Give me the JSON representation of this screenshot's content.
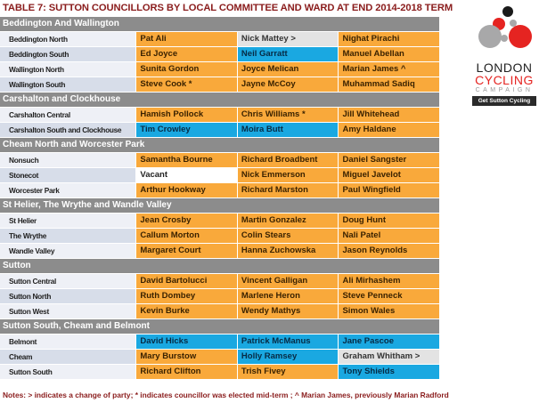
{
  "title": "TABLE 7: SUTTON COUNCILLORS BY LOCAL COMMITTEE AND WARD AT END 2014-2018 TERM",
  "colors": {
    "labour_orange": "#f9a93b",
    "con_blue": "#1aa8e1",
    "independent_grey": "#e3e3e3",
    "vacant_white": "#ffffff",
    "header_grey": "#8c8c8c"
  },
  "groups": [
    {
      "name": "Beddington And Wallington",
      "wards": [
        {
          "ward": "Beddington North",
          "c": [
            {
              "n": "Pat Ali",
              "p": "o"
            },
            {
              "n": "Nick Mattey >",
              "p": "g"
            },
            {
              "n": "Nighat Pirachi",
              "p": "o"
            }
          ]
        },
        {
          "ward": "Beddington South",
          "c": [
            {
              "n": "Ed Joyce",
              "p": "o"
            },
            {
              "n": "Neil Garratt",
              "p": "b"
            },
            {
              "n": "Manuel Abellan",
              "p": "o"
            }
          ]
        },
        {
          "ward": "Wallington North",
          "c": [
            {
              "n": "Sunita Gordon",
              "p": "o"
            },
            {
              "n": "Joyce Melican",
              "p": "o"
            },
            {
              "n": "Marian James ^",
              "p": "o"
            }
          ]
        },
        {
          "ward": "Wallington South",
          "c": [
            {
              "n": "Steve Cook *",
              "p": "o"
            },
            {
              "n": "Jayne McCoy",
              "p": "o"
            },
            {
              "n": "Muhammad Sadiq",
              "p": "o"
            }
          ]
        }
      ]
    },
    {
      "name": "Carshalton and Clockhouse",
      "wards": [
        {
          "ward": "Carshalton Central",
          "c": [
            {
              "n": "Hamish Pollock",
              "p": "o"
            },
            {
              "n": "Chris Williams *",
              "p": "o"
            },
            {
              "n": "Jill Whitehead",
              "p": "o"
            }
          ]
        },
        {
          "ward": "Carshalton South and Clockhouse",
          "c": [
            {
              "n": "Tim Crowley",
              "p": "b"
            },
            {
              "n": "Moira Butt",
              "p": "b"
            },
            {
              "n": "Amy Haldane",
              "p": "o"
            }
          ]
        }
      ]
    },
    {
      "name": "Cheam North and Worcester Park",
      "wards": [
        {
          "ward": "Nonsuch",
          "c": [
            {
              "n": "Samantha Bourne",
              "p": "o"
            },
            {
              "n": "Richard Broadbent",
              "p": "o"
            },
            {
              "n": "Daniel Sangster",
              "p": "o"
            }
          ]
        },
        {
          "ward": "Stonecot",
          "c": [
            {
              "n": "Vacant",
              "p": "w"
            },
            {
              "n": "Nick Emmerson",
              "p": "o"
            },
            {
              "n": "Miguel Javelot",
              "p": "o"
            }
          ]
        },
        {
          "ward": "Worcester Park",
          "c": [
            {
              "n": "Arthur Hookway",
              "p": "o"
            },
            {
              "n": "Richard Marston",
              "p": "o"
            },
            {
              "n": "Paul Wingfield",
              "p": "o"
            }
          ]
        }
      ]
    },
    {
      "name": "St Helier, The Wrythe and Wandle Valley",
      "wards": [
        {
          "ward": "St Helier",
          "c": [
            {
              "n": "Jean Crosby",
              "p": "o"
            },
            {
              "n": "Martin Gonzalez",
              "p": "o"
            },
            {
              "n": "Doug Hunt",
              "p": "o"
            }
          ]
        },
        {
          "ward": "The Wrythe",
          "c": [
            {
              "n": "Callum Morton",
              "p": "o"
            },
            {
              "n": "Colin Stears",
              "p": "o"
            },
            {
              "n": "Nali Patel",
              "p": "o"
            }
          ]
        },
        {
          "ward": "Wandle Valley",
          "c": [
            {
              "n": "Margaret Court",
              "p": "o"
            },
            {
              "n": "Hanna Zuchowska",
              "p": "o"
            },
            {
              "n": "Jason Reynolds",
              "p": "o"
            }
          ]
        }
      ]
    },
    {
      "name": "Sutton",
      "wards": [
        {
          "ward": "Sutton Central",
          "c": [
            {
              "n": "David Bartolucci",
              "p": "o"
            },
            {
              "n": "Vincent Galligan",
              "p": "o"
            },
            {
              "n": "Ali Mirhashem",
              "p": "o"
            }
          ]
        },
        {
          "ward": "Sutton North",
          "c": [
            {
              "n": "Ruth Dombey",
              "p": "o"
            },
            {
              "n": "Marlene Heron",
              "p": "o"
            },
            {
              "n": "Steve Penneck",
              "p": "o"
            }
          ]
        },
        {
          "ward": "Sutton West",
          "c": [
            {
              "n": "Kevin Burke",
              "p": "o"
            },
            {
              "n": "Wendy Mathys",
              "p": "o"
            },
            {
              "n": "Simon Wales",
              "p": "o"
            }
          ]
        }
      ]
    },
    {
      "name": "Sutton South, Cheam and Belmont",
      "wards": [
        {
          "ward": "Belmont",
          "c": [
            {
              "n": "David Hicks",
              "p": "b"
            },
            {
              "n": "Patrick McManus",
              "p": "b"
            },
            {
              "n": "Jane Pascoe",
              "p": "b"
            }
          ]
        },
        {
          "ward": "Cheam",
          "c": [
            {
              "n": "Mary Burstow",
              "p": "o"
            },
            {
              "n": "Holly Ramsey",
              "p": "b"
            },
            {
              "n": "Graham Whitham >",
              "p": "g"
            }
          ]
        },
        {
          "ward": "Sutton South",
          "c": [
            {
              "n": "Richard Clifton",
              "p": "o"
            },
            {
              "n": "Trish Fivey",
              "p": "o"
            },
            {
              "n": "Tony Shields",
              "p": "b"
            }
          ]
        }
      ]
    }
  ],
  "notes": "Notes: > indicates a change of party; * indicates councillor was elected mid-term ;  ^ Marian James, previously Marian Radford",
  "logo": {
    "line1": "LONDON",
    "line2": "CYCLING",
    "line3": "CAMPAIGN",
    "cta": "Get Sutton Cycling"
  }
}
